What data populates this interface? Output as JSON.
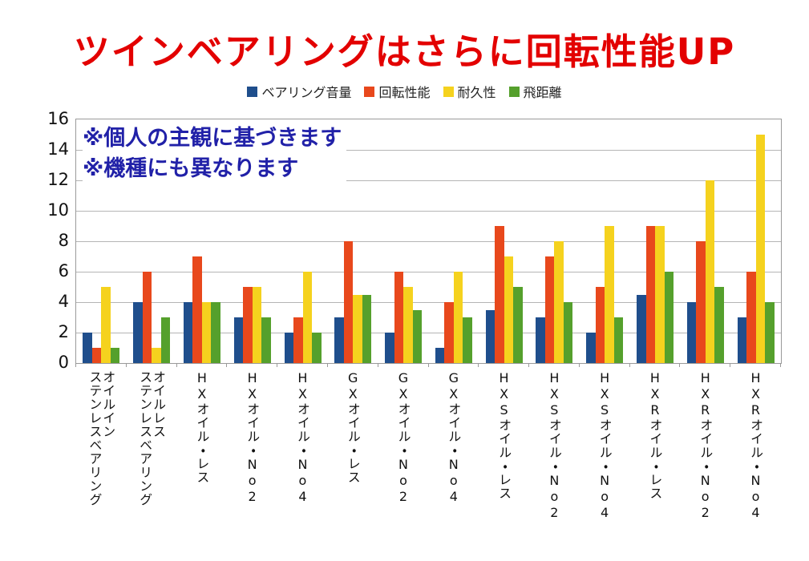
{
  "colors": {
    "title": "#e30000",
    "annotation": "#2121a8",
    "grid": "#b5b5b5",
    "axis_border": "#9a9a9a",
    "axis_text": "#111111"
  },
  "annotation": {
    "line1": "※個人の主観に基づきます",
    "line2": "※機種にも異なります"
  },
  "chart_data": {
    "type": "bar",
    "title": "ツインベアリングはさらに回転性能UP",
    "xlabel": "",
    "ylabel": "",
    "ylim": [
      0,
      16
    ],
    "ytick_step": 2,
    "grid": true,
    "legend_position": "top",
    "annotations": [
      "※個人の主観に基づきます",
      "※機種にも異なります"
    ],
    "categories": [
      "オイルイン\nステンレスベアリング",
      "オイルレス\nステンレスベアリング",
      "HXオイル・レス",
      "HXオイル・No2",
      "HXオイル・No4",
      "GXオイル・レス",
      "GXオイル・No2",
      "GXオイル・No4",
      "HXSオイル・レス",
      "HXSオイル・No2",
      "HXSオイル・No4",
      "HXRオイル・レス",
      "HXRオイル・No2",
      "HXRオイル・No4"
    ],
    "series": [
      {
        "name": "ベアリング音量",
        "color": "#1f4e8c",
        "values": [
          2,
          4,
          4,
          3,
          2,
          3,
          2,
          1,
          3.5,
          3,
          2,
          4.5,
          4,
          3
        ]
      },
      {
        "name": "回転性能",
        "color": "#e8481c",
        "values": [
          1,
          6,
          7,
          5,
          3,
          8,
          6,
          4,
          9,
          7,
          5,
          9,
          8,
          6
        ]
      },
      {
        "name": "耐久性",
        "color": "#f5d21e",
        "values": [
          5,
          1,
          4,
          5,
          6,
          4.5,
          5,
          6,
          7,
          8,
          9,
          9,
          12,
          15
        ]
      },
      {
        "name": "飛距離",
        "color": "#55a02c",
        "values": [
          1,
          3,
          4,
          3,
          2,
          4.5,
          3.5,
          3,
          5,
          4,
          3,
          6,
          5,
          4
        ]
      }
    ]
  }
}
